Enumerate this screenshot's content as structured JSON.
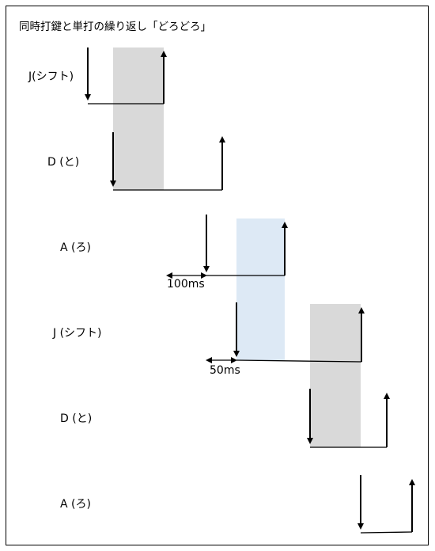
{
  "title": "同時打鍵と単打の繰り返し「どろどろ」",
  "rows": [
    {
      "label": "J(シフト)"
    },
    {
      "label": "D (と)"
    },
    {
      "label": "A (ろ)"
    },
    {
      "label": "J (シフト)"
    },
    {
      "label": "D (と)"
    },
    {
      "label": "A (ろ)"
    }
  ],
  "annotations": {
    "interval_100": "100ms",
    "interval_50": "50ms"
  },
  "colors": {
    "overlap_shade": "#d9d9d9",
    "highlight_shade": "#dde9f5",
    "line": "#000000"
  }
}
